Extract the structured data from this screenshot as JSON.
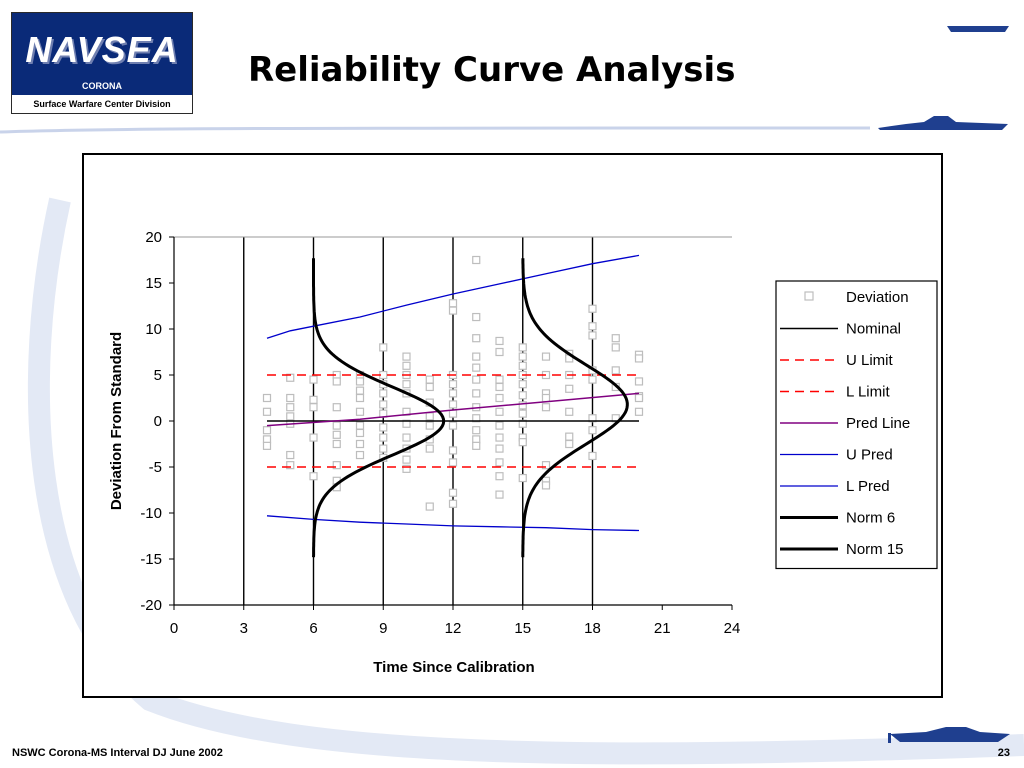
{
  "slide": {
    "title": "Reliability Curve Analysis",
    "footer_left": "NSWC Corona-MS Interval DJ June 2002",
    "page_number": "23"
  },
  "logo": {
    "wordmark": "NAVSEA",
    "subtitle": "CORONA",
    "division": "Surface Warfare Center Division"
  },
  "colors": {
    "accent_blue": "#1f3f8f",
    "pred_line": "#800080",
    "pred_bounds": "#0000cc",
    "limit": "#ff0000",
    "deviation_marker": "#bdbdbd"
  },
  "chart_data": {
    "type": "scatter",
    "xlabel": "Time Since Calibration",
    "ylabel": "Deviation From Standard",
    "xlim": [
      0,
      24
    ],
    "ylim": [
      -20,
      20
    ],
    "xticks": [
      0,
      3,
      6,
      9,
      12,
      15,
      18,
      21,
      24
    ],
    "yticks": [
      -20,
      -15,
      -10,
      -5,
      0,
      5,
      10,
      15,
      20
    ],
    "vertical_gridlines_at": [
      3,
      6,
      9,
      12,
      15,
      18
    ],
    "legend_position": "right",
    "legend": [
      "Deviation",
      "Nominal",
      "U Limit",
      "L Limit",
      "Pred Line",
      "U Pred",
      "L Pred",
      "Norm 6",
      "Norm 15"
    ],
    "series": [
      {
        "name": "Deviation",
        "kind": "scatter",
        "points": [
          [
            4,
            2.5
          ],
          [
            4,
            1
          ],
          [
            4,
            -1
          ],
          [
            4,
            -2
          ],
          [
            4,
            -2.7
          ],
          [
            5,
            4.7
          ],
          [
            5,
            2.5
          ],
          [
            5,
            1.5
          ],
          [
            5,
            0.5
          ],
          [
            5,
            -0.3
          ],
          [
            5,
            -3.7
          ],
          [
            5,
            -4.8
          ],
          [
            6,
            4.5
          ],
          [
            6,
            2.3
          ],
          [
            6,
            1.5
          ],
          [
            6,
            -1.8
          ],
          [
            6,
            -6
          ],
          [
            7,
            5
          ],
          [
            7,
            4.3
          ],
          [
            7,
            1.5
          ],
          [
            7,
            -0.5
          ],
          [
            7,
            -1.5
          ],
          [
            7,
            -2.5
          ],
          [
            7,
            -4.8
          ],
          [
            7,
            -6.5
          ],
          [
            7,
            -7.2
          ],
          [
            8,
            5
          ],
          [
            8,
            4.3
          ],
          [
            8,
            3.3
          ],
          [
            8,
            2.5
          ],
          [
            8,
            1
          ],
          [
            8,
            -0.5
          ],
          [
            8,
            -1.3
          ],
          [
            8,
            -2.5
          ],
          [
            8,
            -3.7
          ],
          [
            9,
            8
          ],
          [
            9,
            5
          ],
          [
            9,
            4
          ],
          [
            9,
            3
          ],
          [
            9,
            1.8
          ],
          [
            9,
            0.8
          ],
          [
            9,
            -0.7
          ],
          [
            9,
            -1.8
          ],
          [
            9,
            -3
          ],
          [
            9,
            -4
          ],
          [
            10,
            7
          ],
          [
            10,
            6
          ],
          [
            10,
            5
          ],
          [
            10,
            4
          ],
          [
            10,
            3
          ],
          [
            10,
            1
          ],
          [
            10,
            -0.3
          ],
          [
            10,
            -1.8
          ],
          [
            10,
            -3
          ],
          [
            10,
            -4.2
          ],
          [
            10,
            -5.2
          ],
          [
            11,
            4.5
          ],
          [
            11,
            3.7
          ],
          [
            11,
            2
          ],
          [
            11,
            0.5
          ],
          [
            11,
            -0.5
          ],
          [
            11,
            -2
          ],
          [
            11,
            -3
          ],
          [
            11,
            -9.3
          ],
          [
            12,
            12.8
          ],
          [
            12,
            12
          ],
          [
            12,
            5
          ],
          [
            12,
            4
          ],
          [
            12,
            3
          ],
          [
            12,
            1.8
          ],
          [
            12,
            0.8
          ],
          [
            12,
            -0.5
          ],
          [
            12,
            -3.2
          ],
          [
            12,
            -4.5
          ],
          [
            12,
            -7.8
          ],
          [
            12,
            -9
          ],
          [
            13,
            17.5
          ],
          [
            13,
            11.3
          ],
          [
            13,
            9
          ],
          [
            13,
            7
          ],
          [
            13,
            5.8
          ],
          [
            13,
            4.5
          ],
          [
            13,
            3
          ],
          [
            13,
            1.5
          ],
          [
            13,
            0.3
          ],
          [
            13,
            -1
          ],
          [
            13,
            -2
          ],
          [
            13,
            -2.7
          ],
          [
            14,
            8.7
          ],
          [
            14,
            7.5
          ],
          [
            14,
            4.5
          ],
          [
            14,
            3.7
          ],
          [
            14,
            2.5
          ],
          [
            14,
            1
          ],
          [
            14,
            -0.5
          ],
          [
            14,
            -1.8
          ],
          [
            14,
            -3
          ],
          [
            14,
            -4.5
          ],
          [
            14,
            -6
          ],
          [
            14,
            -8
          ],
          [
            15,
            8
          ],
          [
            15,
            7
          ],
          [
            15,
            6
          ],
          [
            15,
            5
          ],
          [
            15,
            4
          ],
          [
            15,
            2.8
          ],
          [
            15,
            1.7
          ],
          [
            15,
            0.8
          ],
          [
            15,
            -0.3
          ],
          [
            15,
            -1.8
          ],
          [
            15,
            -2.3
          ],
          [
            15,
            -6.2
          ],
          [
            16,
            7
          ],
          [
            16,
            5
          ],
          [
            16,
            3
          ],
          [
            16,
            2.5
          ],
          [
            16,
            1.5
          ],
          [
            16,
            -4.8
          ],
          [
            16,
            -6.5
          ],
          [
            16,
            -7
          ],
          [
            17,
            7.3
          ],
          [
            17,
            6.8
          ],
          [
            17,
            5
          ],
          [
            17,
            3.5
          ],
          [
            17,
            1
          ],
          [
            17,
            -1.7
          ],
          [
            17,
            -2.5
          ],
          [
            18,
            12.2
          ],
          [
            18,
            10.3
          ],
          [
            18,
            9.3
          ],
          [
            18,
            5.5
          ],
          [
            18,
            4.5
          ],
          [
            18,
            0.3
          ],
          [
            18,
            -1
          ],
          [
            18,
            -3.8
          ],
          [
            19,
            9
          ],
          [
            19,
            8
          ],
          [
            19,
            5.5
          ],
          [
            19,
            3.7
          ],
          [
            19,
            0.3
          ],
          [
            20,
            7.2
          ],
          [
            20,
            6.8
          ],
          [
            20,
            4.3
          ],
          [
            20,
            2.7
          ],
          [
            20,
            2.5
          ],
          [
            20,
            1
          ]
        ]
      },
      {
        "name": "Nominal",
        "kind": "line",
        "points": [
          [
            4,
            0
          ],
          [
            20,
            0
          ]
        ]
      },
      {
        "name": "U Limit",
        "kind": "line",
        "points": [
          [
            4,
            5
          ],
          [
            20,
            5
          ]
        ]
      },
      {
        "name": "L Limit",
        "kind": "line",
        "points": [
          [
            4,
            -5
          ],
          [
            20,
            -5
          ]
        ]
      },
      {
        "name": "Pred Line",
        "kind": "line",
        "points": [
          [
            4,
            -0.5
          ],
          [
            8,
            0.2
          ],
          [
            12,
            1.2
          ],
          [
            16,
            2.1
          ],
          [
            20,
            3
          ]
        ]
      },
      {
        "name": "U Pred",
        "kind": "line",
        "points": [
          [
            4,
            9
          ],
          [
            5,
            9.8
          ],
          [
            6,
            10.3
          ],
          [
            8,
            11.3
          ],
          [
            10,
            12.6
          ],
          [
            12,
            13.8
          ],
          [
            14,
            14.9
          ],
          [
            16,
            16
          ],
          [
            18,
            17.1
          ],
          [
            20,
            18
          ]
        ]
      },
      {
        "name": "L Pred",
        "kind": "line",
        "points": [
          [
            4,
            -10.3
          ],
          [
            6,
            -10.7
          ],
          [
            8,
            -11
          ],
          [
            10,
            -11.2
          ],
          [
            12,
            -11.4
          ],
          [
            14,
            -11.5
          ],
          [
            16,
            -11.6
          ],
          [
            18,
            -11.8
          ],
          [
            20,
            -11.9
          ]
        ]
      },
      {
        "name": "Norm 6",
        "kind": "line",
        "mean_x": 6,
        "peak_x": 11.6,
        "center_y": 0,
        "sigma": 3.7,
        "range": [
          -14.8,
          17.8
        ]
      },
      {
        "name": "Norm 15",
        "kind": "line",
        "mean_x": 15,
        "peak_x": 19.5,
        "center_y": 1.8,
        "sigma": 4.3,
        "range": [
          -14.8,
          17.8
        ]
      }
    ]
  }
}
